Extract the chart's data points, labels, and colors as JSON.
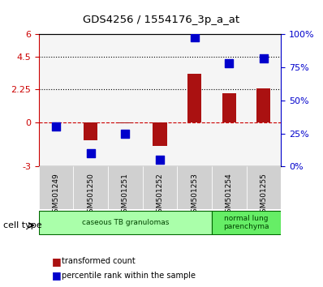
{
  "title": "GDS4256 / 1554176_3p_a_at",
  "samples": [
    "GSM501249",
    "GSM501250",
    "GSM501251",
    "GSM501252",
    "GSM501253",
    "GSM501254",
    "GSM501255"
  ],
  "transformed_count": [
    0.0,
    -1.2,
    -0.05,
    -1.6,
    3.3,
    2.0,
    2.3
  ],
  "percentile_rank": [
    30,
    10,
    25,
    5,
    98,
    78,
    82
  ],
  "cell_types": [
    {
      "label": "caseous TB granulomas",
      "samples": [
        0,
        1,
        2,
        3,
        4
      ],
      "color": "#aaffaa"
    },
    {
      "label": "normal lung\nparenchyma",
      "samples": [
        5,
        6
      ],
      "color": "#66dd66"
    }
  ],
  "ylim_left": [
    -3,
    6
  ],
  "ylim_right": [
    0,
    100
  ],
  "yticks_left": [
    -3,
    0,
    2.25,
    4.5,
    6
  ],
  "ytick_labels_left": [
    "-3",
    "0",
    "2.25",
    "4.5",
    "6"
  ],
  "yticks_right": [
    0,
    25,
    50,
    75,
    100
  ],
  "ytick_labels_right": [
    "0%",
    "25%",
    "50%",
    "75%",
    "100%"
  ],
  "hlines": [
    0,
    2.25,
    4.5
  ],
  "hline_styles": [
    "dashed",
    "dotted",
    "dotted"
  ],
  "hline_colors": [
    "#cc0000",
    "#000000",
    "#000000"
  ],
  "bar_color": "#aa1111",
  "dot_color": "#0000cc",
  "bar_width": 0.4,
  "dot_size": 60,
  "xlabel": "",
  "legend_labels": [
    "transformed count",
    "percentile rank within the sample"
  ],
  "background_color": "#ffffff",
  "plot_bg_color": "#f0f0f0",
  "cell_type_label": "cell type"
}
